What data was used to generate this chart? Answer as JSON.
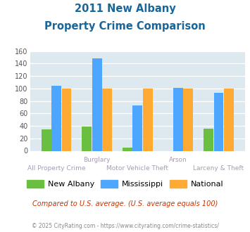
{
  "title_line1": "2011 New Albany",
  "title_line2": "Property Crime Comparison",
  "categories": [
    "All Property Crime",
    "Burglary",
    "Motor Vehicle Theft",
    "Arson",
    "Larceny & Theft"
  ],
  "new_albany": [
    34,
    39,
    5,
    0,
    36
  ],
  "mississippi": [
    104,
    148,
    73,
    101,
    93
  ],
  "national": [
    100,
    100,
    100,
    100,
    100
  ],
  "colors": {
    "new_albany": "#6abf40",
    "mississippi": "#4da6ff",
    "national": "#ffaa33"
  },
  "ylim": [
    0,
    160
  ],
  "yticks": [
    0,
    20,
    40,
    60,
    80,
    100,
    120,
    140,
    160
  ],
  "bg_color": "#dde9ee",
  "title_color": "#1a6699",
  "axis_label_color": "#aa99bb",
  "legend_labels": [
    "New Albany",
    "Mississippi",
    "National"
  ],
  "footnote1": "Compared to U.S. average. (U.S. average equals 100)",
  "footnote2": "© 2025 CityRating.com - https://www.cityrating.com/crime-statistics/",
  "footnote1_color": "#cc3300",
  "footnote2_color": "#888888",
  "top_row_labels": [
    [
      1,
      "Burglary"
    ],
    [
      3,
      "Arson"
    ]
  ],
  "bottom_row_labels": [
    [
      0,
      "All Property Crime"
    ],
    [
      2,
      "Motor Vehicle Theft"
    ],
    [
      4,
      "Larceny & Theft"
    ]
  ]
}
